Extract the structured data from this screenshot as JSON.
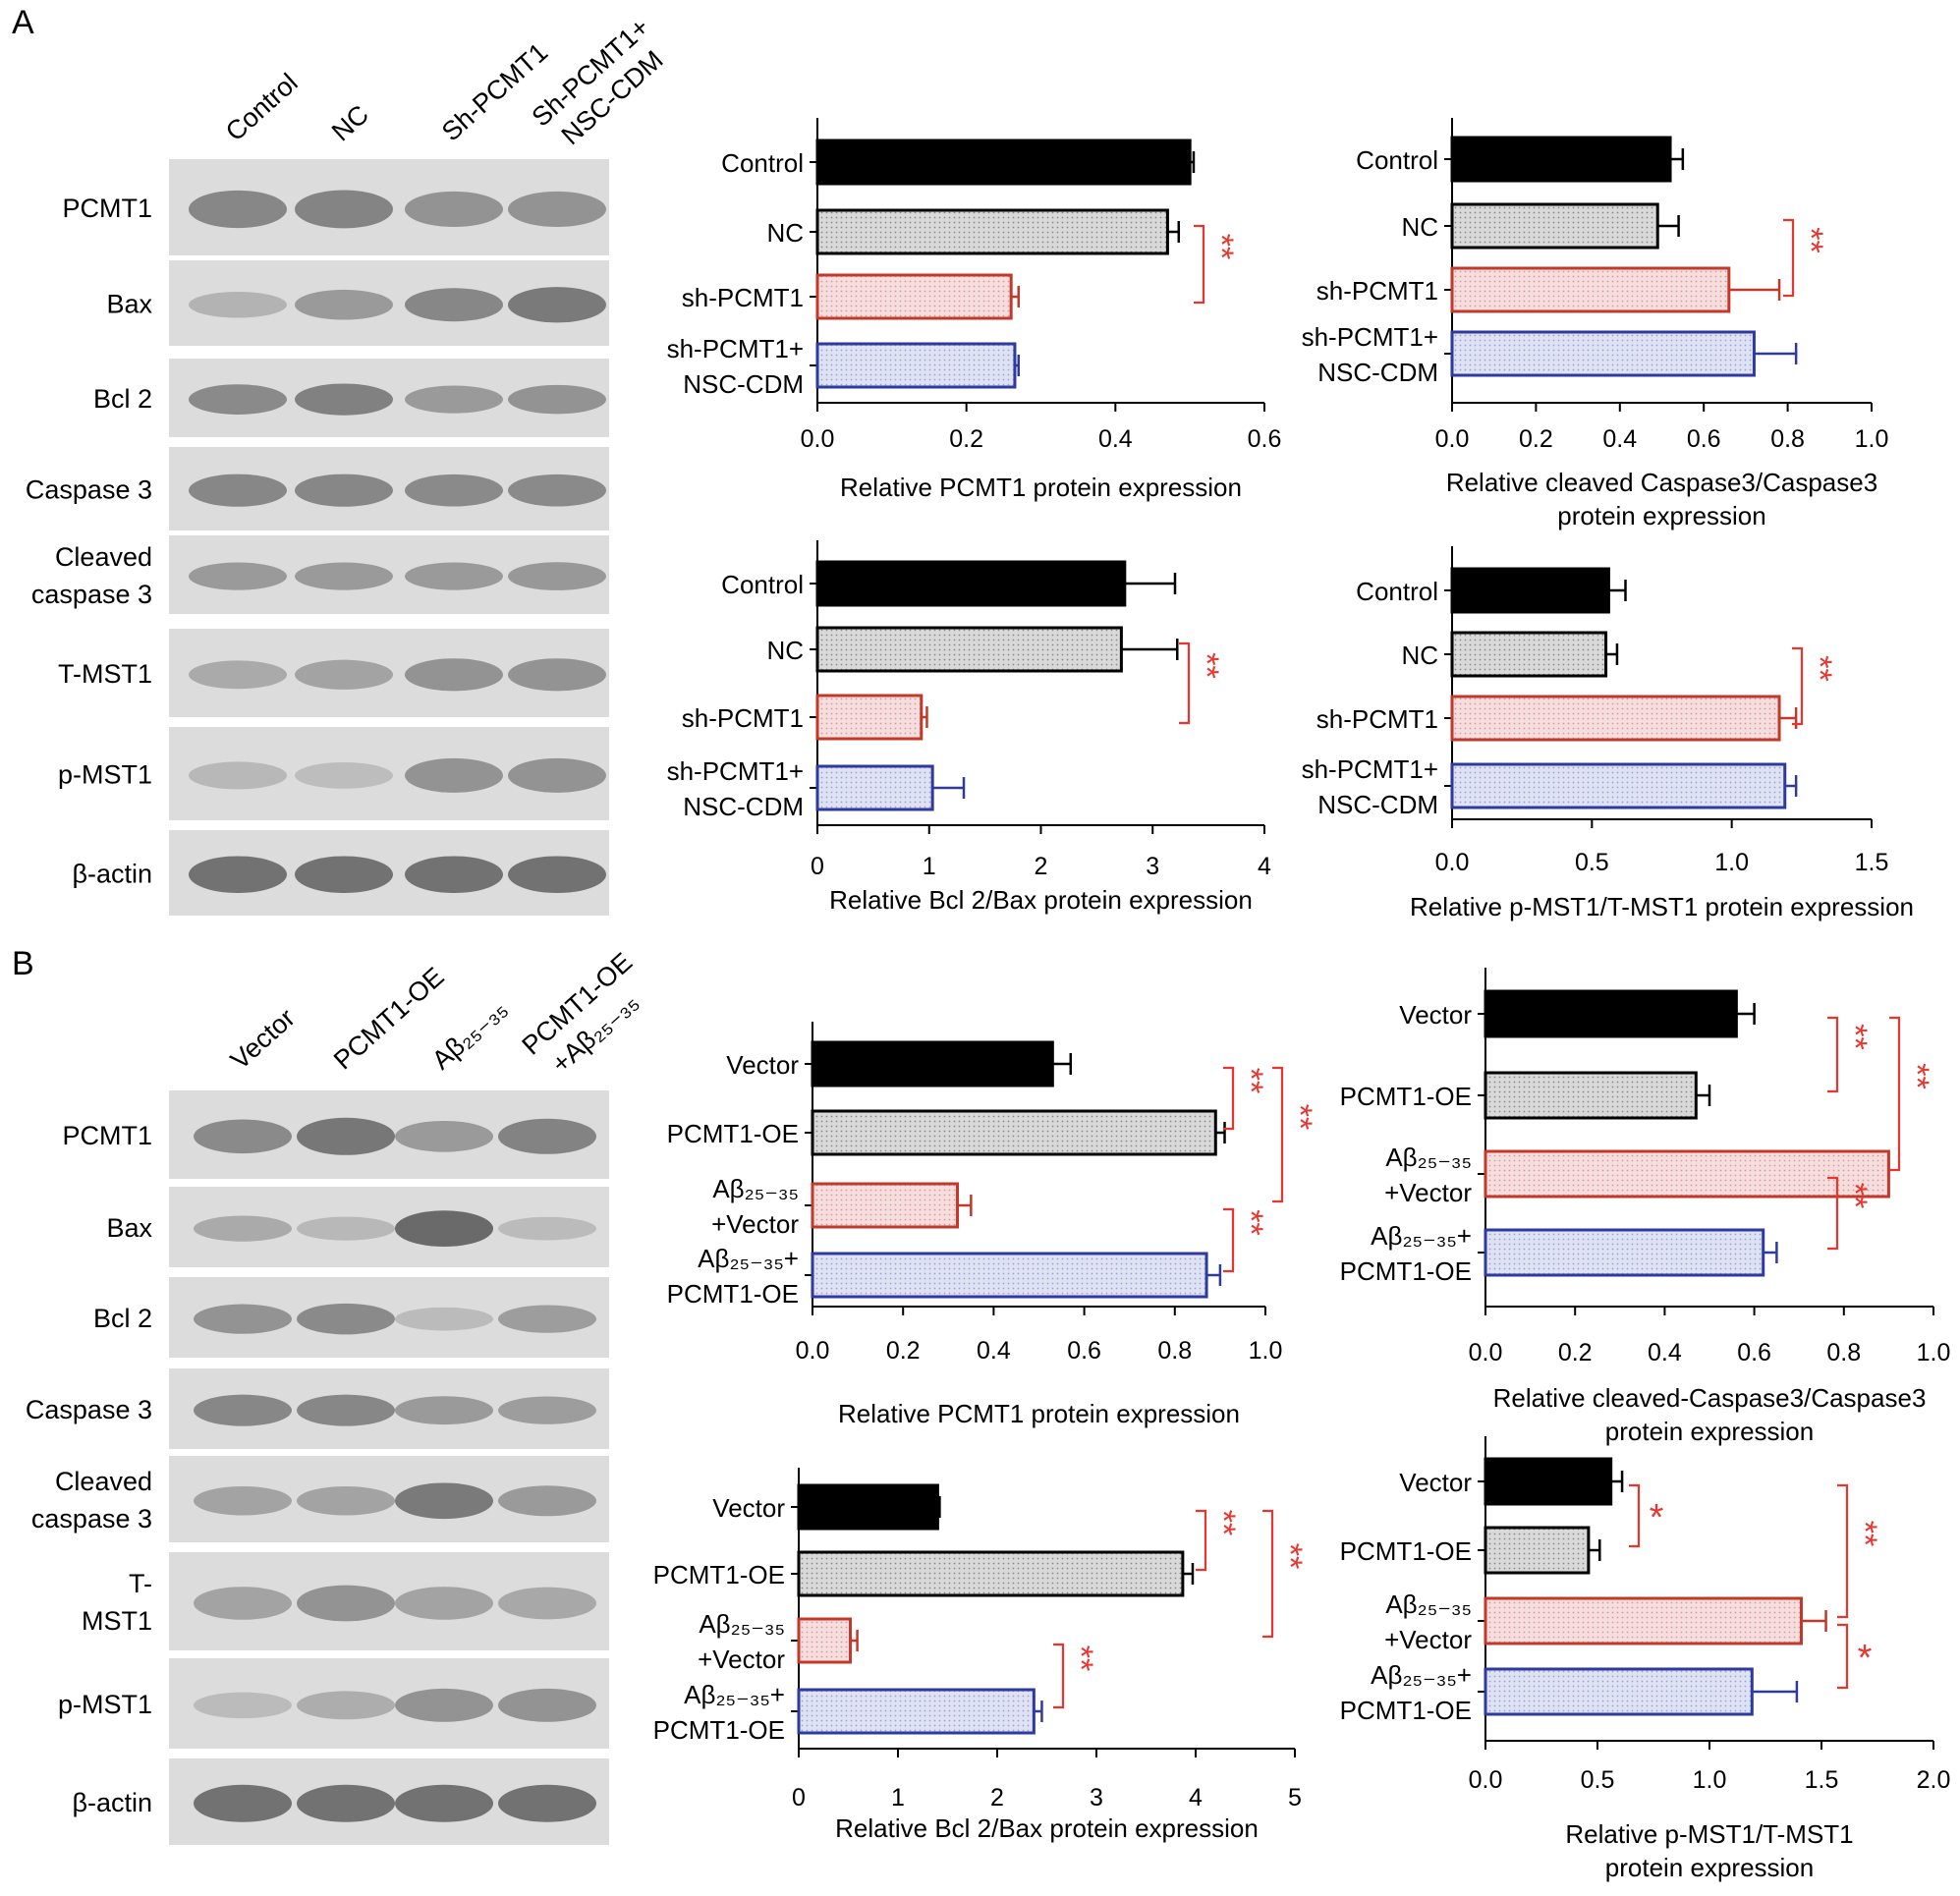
{
  "panels": [
    {
      "label": "A",
      "blot": {
        "lane_labels": [
          "Control",
          "NC",
          "Sh-PCMT1",
          "Sh-PCMT1+\nNSC-CDM"
        ],
        "bands": [
          {
            "name": "PCMT1",
            "intensity": [
              0.62,
              0.64,
              0.55,
              0.55
            ]
          },
          {
            "name": "Bax",
            "intensity": [
              0.35,
              0.5,
              0.62,
              0.7
            ]
          },
          {
            "name": "Bcl 2",
            "intensity": [
              0.6,
              0.66,
              0.5,
              0.55
            ]
          },
          {
            "name": "Caspase 3",
            "intensity": [
              0.62,
              0.62,
              0.6,
              0.6
            ]
          },
          {
            "name": "Cleaved\ncaspase 3",
            "intensity": [
              0.5,
              0.5,
              0.5,
              0.52
            ]
          },
          {
            "name": "T-MST1",
            "intensity": [
              0.4,
              0.45,
              0.55,
              0.55
            ]
          },
          {
            "name": "p-MST1",
            "intensity": [
              0.32,
              0.28,
              0.55,
              0.55
            ]
          },
          {
            "name": "β-actin",
            "intensity": [
              0.75,
              0.75,
              0.75,
              0.75
            ]
          }
        ]
      }
    },
    {
      "label": "B",
      "blot": {
        "lane_labels": [
          "Vector",
          "PCMT1-OE",
          "Aβ₂₅₋₃₅",
          "PCMT1-OE\n+Aβ₂₅₋₃₅"
        ],
        "bands": [
          {
            "name": "PCMT1",
            "intensity": [
              0.6,
              0.72,
              0.5,
              0.65
            ]
          },
          {
            "name": "Bax",
            "intensity": [
              0.4,
              0.32,
              0.8,
              0.3
            ]
          },
          {
            "name": "Bcl 2",
            "intensity": [
              0.55,
              0.6,
              0.3,
              0.48
            ]
          },
          {
            "name": "Caspase 3",
            "intensity": [
              0.62,
              0.62,
              0.5,
              0.48
            ]
          },
          {
            "name": "Cleaved\ncaspase 3",
            "intensity": [
              0.45,
              0.45,
              0.7,
              0.5
            ]
          },
          {
            "name": "T-\nMST1",
            "intensity": [
              0.45,
              0.55,
              0.45,
              0.42
            ]
          },
          {
            "name": "p-MST1",
            "intensity": [
              0.3,
              0.38,
              0.55,
              0.55
            ]
          },
          {
            "name": "β-actin",
            "intensity": [
              0.75,
              0.75,
              0.75,
              0.75
            ]
          }
        ]
      }
    }
  ],
  "colors": {
    "black": "#000000",
    "red": "#c0392b",
    "blue": "#2e3a9e",
    "sig": "#e8352e"
  },
  "chart_data": [
    {
      "type": "bar",
      "panel": "A",
      "orientation": "horizontal",
      "categories": [
        "Control",
        "NC",
        "sh-PCMT1",
        "sh-PCMT1+\nNSC-CDM"
      ],
      "values": [
        0.5,
        0.47,
        0.26,
        0.265
      ],
      "errors": [
        0.005,
        0.015,
        0.01,
        0.005
      ],
      "xlim": [
        0,
        0.6
      ],
      "ticks": [
        "0.0",
        "0.2",
        "0.4",
        "0.6"
      ],
      "xlabel": "Relative PCMT1 protein  expression",
      "significance": [
        {
          "from": 1,
          "to": 2,
          "label": "**"
        }
      ]
    },
    {
      "type": "bar",
      "panel": "A",
      "orientation": "horizontal",
      "categories": [
        "Control",
        "NC",
        "sh-PCMT1",
        "sh-PCMT1+\nNSC-CDM"
      ],
      "values": [
        0.52,
        0.49,
        0.66,
        0.72
      ],
      "errors": [
        0.03,
        0.05,
        0.12,
        0.1
      ],
      "xlim": [
        0,
        1.0
      ],
      "ticks": [
        "0.0",
        "0.2",
        "0.4",
        "0.6",
        "0.8",
        "1.0"
      ],
      "xlabel": "Relative cleaved Caspase3/Caspase3\nprotein expression",
      "significance": [
        {
          "from": 1,
          "to": 2,
          "label": "**"
        }
      ]
    },
    {
      "type": "bar",
      "panel": "A",
      "orientation": "horizontal",
      "categories": [
        "Control",
        "NC",
        "sh-PCMT1",
        "sh-PCMT1+\nNSC-CDM"
      ],
      "values": [
        2.75,
        2.72,
        0.93,
        1.03
      ],
      "errors": [
        0.45,
        0.5,
        0.05,
        0.28
      ],
      "xlim": [
        0,
        4
      ],
      "ticks": [
        "0",
        "1",
        "2",
        "3",
        "4"
      ],
      "xlabel": "Relative Bcl 2/Bax protein expression",
      "significance": [
        {
          "from": 1,
          "to": 2,
          "label": "**"
        }
      ]
    },
    {
      "type": "bar",
      "panel": "A",
      "orientation": "horizontal",
      "categories": [
        "Control",
        "NC",
        "sh-PCMT1",
        "sh-PCMT1+\nNSC-CDM"
      ],
      "values": [
        0.56,
        0.55,
        1.17,
        1.19
      ],
      "errors": [
        0.06,
        0.04,
        0.06,
        0.04
      ],
      "xlim": [
        0,
        1.5
      ],
      "ticks": [
        "0.0",
        "0.5",
        "1.0",
        "1.5"
      ],
      "xlabel": "Relative p-MST1/T-MST1 protein expression",
      "significance": [
        {
          "from": 1,
          "to": 2,
          "label": "**"
        }
      ]
    },
    {
      "type": "bar",
      "panel": "B",
      "orientation": "horizontal",
      "categories": [
        "Vector",
        "PCMT1-OE",
        "Aβ₂₅₋₃₅\n+Vector",
        "Aβ₂₅₋₃₅+\nPCMT1-OE"
      ],
      "values": [
        0.53,
        0.89,
        0.32,
        0.87
      ],
      "errors": [
        0.04,
        0.02,
        0.03,
        0.03
      ],
      "xlim": [
        0,
        1.0
      ],
      "ticks": [
        "0.0",
        "0.2",
        "0.4",
        "0.6",
        "0.8",
        "1.0"
      ],
      "xlabel": "Relative PCMT1 protein expression",
      "significance": [
        {
          "from": 0,
          "to": 1,
          "label": "**"
        },
        {
          "from": 0,
          "to": 2,
          "label": "**"
        },
        {
          "from": 2,
          "to": 3,
          "label": "**"
        }
      ]
    },
    {
      "type": "bar",
      "panel": "B",
      "orientation": "horizontal",
      "categories": [
        "Vector",
        "PCMT1-OE",
        "Aβ₂₅₋₃₅\n+Vector",
        "Aβ₂₅₋₃₅+\nPCMT1-OE"
      ],
      "values": [
        0.56,
        0.47,
        0.9,
        0.62
      ],
      "errors": [
        0.04,
        0.03,
        0.0,
        0.03
      ],
      "xlim": [
        0,
        1.0
      ],
      "ticks": [
        "0.0",
        "0.2",
        "0.4",
        "0.6",
        "0.8",
        "1.0"
      ],
      "xlabel": "Relative cleaved-Caspase3/Caspase3\nprotein expression",
      "significance": [
        {
          "from": 0,
          "to": 1,
          "label": "**"
        },
        {
          "from": 0,
          "to": 2,
          "label": "**"
        },
        {
          "from": 2,
          "to": 3,
          "label": "**"
        }
      ]
    },
    {
      "type": "bar",
      "panel": "B",
      "orientation": "horizontal",
      "categories": [
        "Vector",
        "PCMT1-OE",
        "Aβ₂₅₋₃₅\n+Vector",
        "Aβ₂₅₋₃₅+\nPCMT1-OE"
      ],
      "values": [
        1.4,
        3.87,
        0.52,
        2.37
      ],
      "errors": [
        0.02,
        0.1,
        0.07,
        0.08
      ],
      "xlim": [
        0,
        5
      ],
      "ticks": [
        "0",
        "1",
        "2",
        "3",
        "4",
        "5"
      ],
      "xlabel": "Relative Bcl 2/Bax protein expression",
      "significance": [
        {
          "from": 0,
          "to": 1,
          "label": "**"
        },
        {
          "from": 0,
          "to": 2,
          "label": "**"
        },
        {
          "from": 2,
          "to": 3,
          "label": "**"
        }
      ]
    },
    {
      "type": "bar",
      "panel": "B",
      "orientation": "horizontal",
      "categories": [
        "Vector",
        "PCMT1-OE",
        "Aβ₂₅₋₃₅\n+Vector",
        "Aβ₂₅₋₃₅+\nPCMT1-OE"
      ],
      "values": [
        0.56,
        0.46,
        1.41,
        1.19
      ],
      "errors": [
        0.05,
        0.05,
        0.11,
        0.2
      ],
      "xlim": [
        0,
        2.0
      ],
      "ticks": [
        "0.0",
        "0.5",
        "1.0",
        "1.5",
        "2.0"
      ],
      "xlabel": "Relative p-MST1/T-MST1\nprotein expression",
      "significance": [
        {
          "from": 0,
          "to": 1,
          "label": "*"
        },
        {
          "from": 0,
          "to": 2,
          "label": "**"
        },
        {
          "from": 2,
          "to": 3,
          "label": "*"
        }
      ]
    }
  ]
}
